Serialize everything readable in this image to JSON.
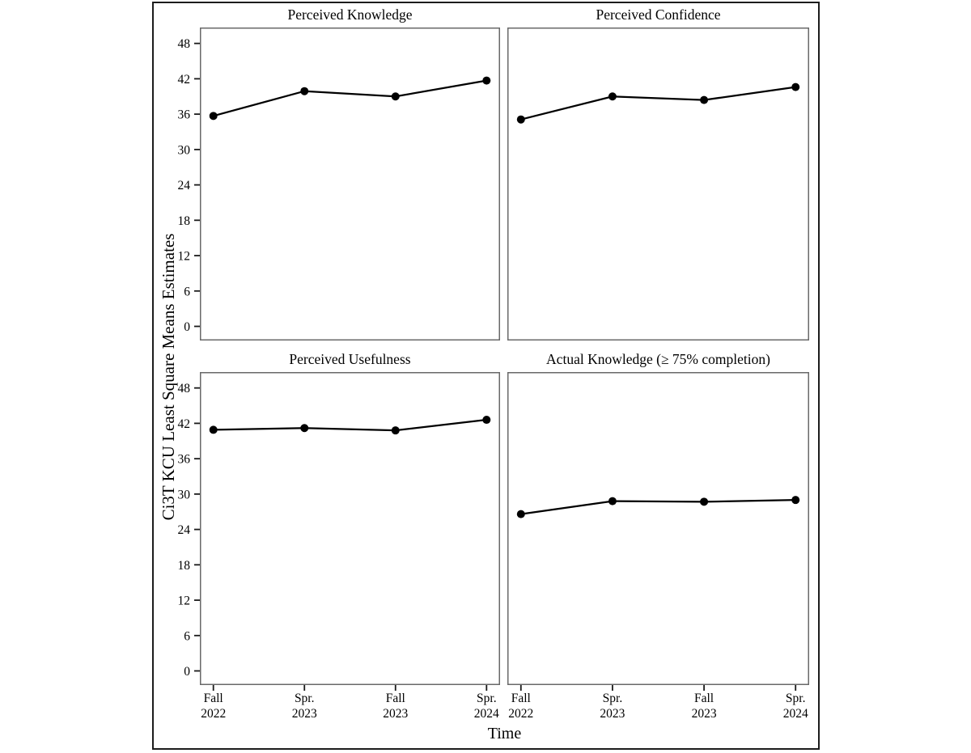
{
  "figure": {
    "y_axis_title": "Ci3T KCU Least Square Means Estimates",
    "x_axis_title": "Time",
    "layout": {
      "rows": 2,
      "cols": 2,
      "shared_y_axis": true,
      "shared_x_axis": true,
      "legend": "none",
      "grid": false
    }
  },
  "style": {
    "line_color": "#000000",
    "marker_color": "#000000",
    "panel_border_color": "#696969",
    "outer_border_color": "#1c1c1c",
    "tick_color": "#1a1a1a",
    "text_color": "#000000",
    "background_color": "#ffffff"
  },
  "chart_data": [
    {
      "type": "line",
      "title": "Perceived Knowledge",
      "categories": [
        "Fall 2022",
        "Spr. 2023",
        "Fall 2023",
        "Spr. 2024"
      ],
      "values": [
        35.7,
        39.9,
        39.0,
        41.7
      ],
      "y_ticks": [
        0,
        6,
        12,
        18,
        24,
        30,
        36,
        42,
        48
      ],
      "ylim": [
        -2.4,
        50.7
      ],
      "xlabel": "Time",
      "ylabel": "Ci3T KCU Least Square Means Estimates",
      "grid": false,
      "marker": "circle"
    },
    {
      "type": "line",
      "title": "Perceived Confidence",
      "categories": [
        "Fall 2022",
        "Spr. 2023",
        "Fall 2023",
        "Spr. 2024"
      ],
      "values": [
        35.1,
        39.0,
        38.4,
        40.6
      ],
      "y_ticks": [
        0,
        6,
        12,
        18,
        24,
        30,
        36,
        42,
        48
      ],
      "ylim": [
        -2.4,
        50.7
      ],
      "xlabel": "Time",
      "ylabel": "Ci3T KCU Least Square Means Estimates",
      "grid": false,
      "marker": "circle"
    },
    {
      "type": "line",
      "title": "Perceived Usefulness",
      "categories": [
        "Fall 2022",
        "Spr. 2023",
        "Fall 2023",
        "Spr. 2024"
      ],
      "values": [
        40.9,
        41.2,
        40.8,
        42.6
      ],
      "y_ticks": [
        0,
        6,
        12,
        18,
        24,
        30,
        36,
        42,
        48
      ],
      "ylim": [
        -2.4,
        50.7
      ],
      "xlabel": "Time",
      "ylabel": "Ci3T KCU Least Square Means Estimates",
      "grid": false,
      "marker": "circle"
    },
    {
      "type": "line",
      "title": "Actual Knowledge (≥ 75% completion)",
      "categories": [
        "Fall 2022",
        "Spr. 2023",
        "Fall 2023",
        "Spr. 2024"
      ],
      "values": [
        26.6,
        28.8,
        28.7,
        29.0
      ],
      "y_ticks": [
        0,
        6,
        12,
        18,
        24,
        30,
        36,
        42,
        48
      ],
      "ylim": [
        -2.4,
        50.7
      ],
      "xlabel": "Time",
      "ylabel": "Ci3T KCU Least Square Means Estimates",
      "grid": false,
      "marker": "circle"
    }
  ]
}
